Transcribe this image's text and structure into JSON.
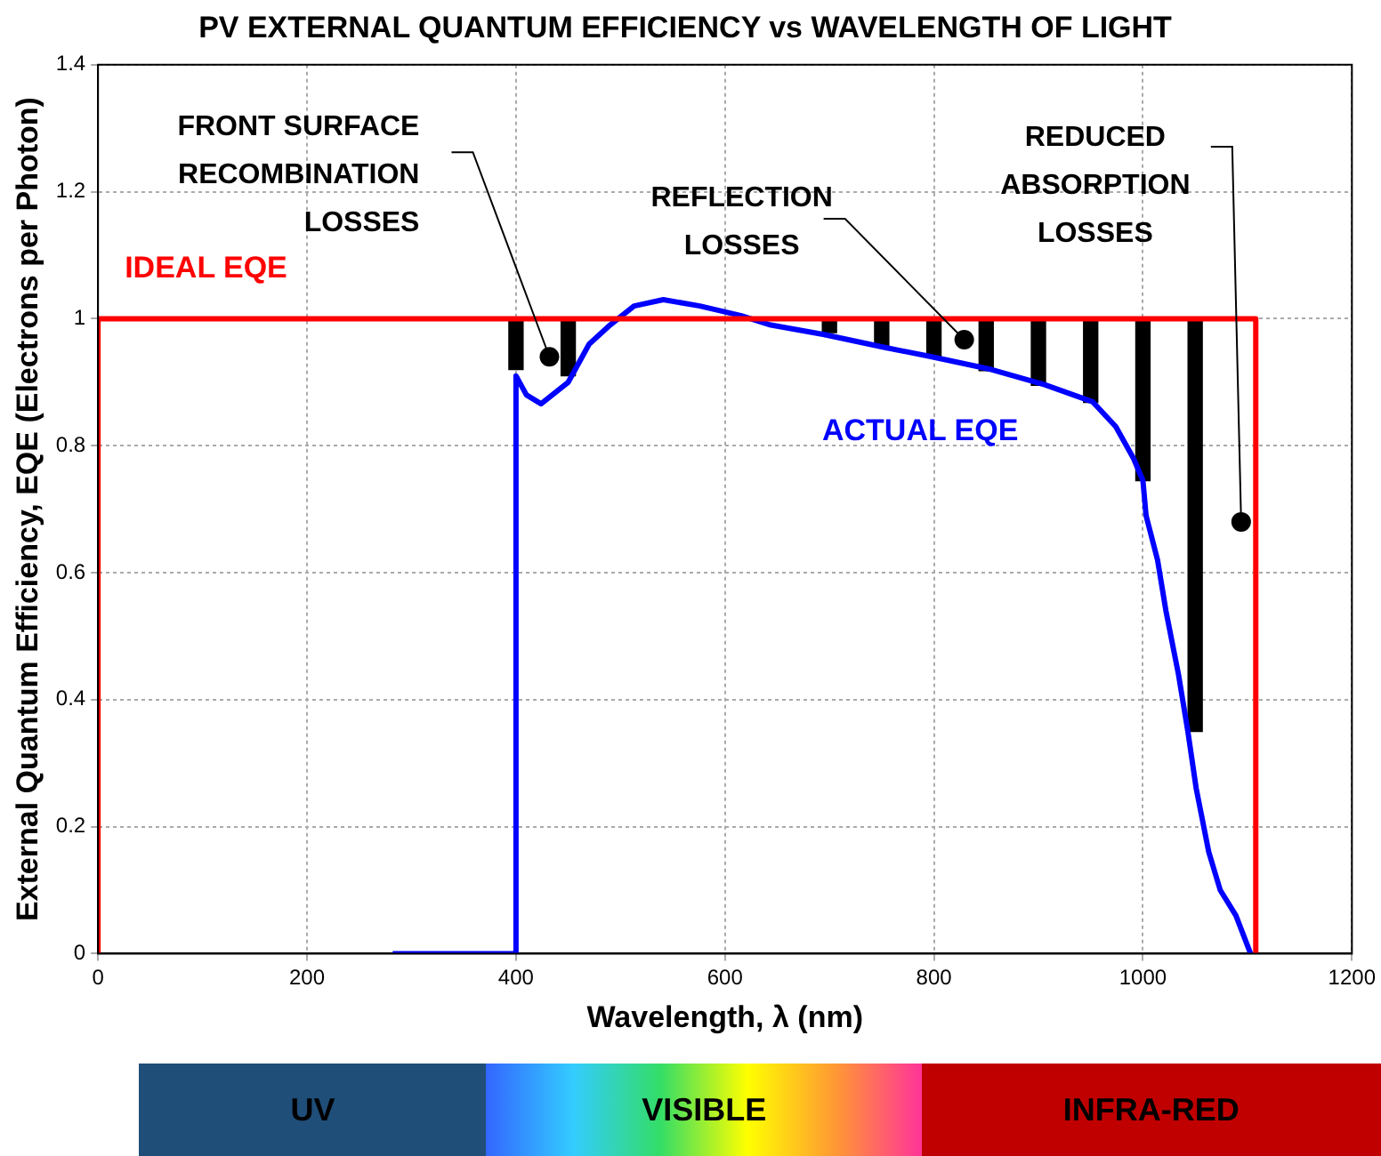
{
  "chart_data": {
    "type": "line",
    "title": "PV EXTERNAL QUANTUM EFFICIENCY vs WAVELENGTH OF LIGHT",
    "xlabel": "Wavelength, λ (nm)",
    "ylabel": "External Quantum Efficiency, EQE (Electrons per Photon)",
    "xlim": [
      0,
      1200
    ],
    "xticks": [
      0,
      200,
      400,
      600,
      800,
      1000,
      1200
    ],
    "ylim": [
      0,
      1.4
    ],
    "yticks": [
      0,
      0.2,
      0.4,
      0.6,
      0.8,
      1,
      1.2,
      1.4
    ],
    "grid": true,
    "legend": false,
    "marker": "none",
    "line_style": "solid",
    "series": [
      {
        "name": "IDEAL EQE",
        "color": "#ff0000",
        "x": [
          0,
          0,
          1108,
          1108
        ],
        "values": [
          0,
          1,
          1,
          0
        ]
      },
      {
        "name": "ACTUAL EQE",
        "color": "#0000ff",
        "x": [
          282,
          400,
          400,
          410,
          424,
          450,
          470,
          490,
          513,
          541,
          576,
          615,
          644,
          695,
          752,
          798,
          855,
          906,
          952,
          974,
          991,
          1000,
          1003,
          1014,
          1022,
          1034,
          1043,
          1051,
          1063,
          1074,
          1089,
          1103
        ],
        "values": [
          0,
          0,
          0.91,
          0.88,
          0.866,
          0.9,
          0.96,
          0.99,
          1.02,
          1.03,
          1.02,
          1.005,
          0.99,
          0.975,
          0.955,
          0.94,
          0.92,
          0.896,
          0.869,
          0.83,
          0.78,
          0.745,
          0.69,
          0.62,
          0.54,
          0.44,
          0.35,
          0.26,
          0.16,
          0.1,
          0.06,
          0
        ]
      },
      {
        "type": "bar",
        "color": "#000000",
        "x": [
          400,
          450,
          700,
          750,
          800,
          850,
          900,
          950,
          1000,
          1050
        ],
        "base": [
          0.92,
          0.91,
          0.978,
          0.956,
          0.94,
          0.918,
          0.895,
          0.868,
          0.745,
          0.35
        ],
        "values": [
          0.08,
          0.09,
          0.022,
          0.044,
          0.06,
          0.082,
          0.105,
          0.132,
          0.255,
          0.65
        ]
      }
    ],
    "annotations": [
      {
        "text": "FRONT SURFACE\nRECOMBINATION\nLOSSES",
        "x": 432,
        "y": 0.94
      },
      {
        "text": "REFLECTION\nLOSSES",
        "x": 829,
        "y": 0.967
      },
      {
        "text": "REDUCED\nABSORPTION\nLOSSES",
        "x": 1094,
        "y": 0.68
      },
      "UV",
      "VISIBLE",
      "INFRA-RED"
    ]
  }
}
